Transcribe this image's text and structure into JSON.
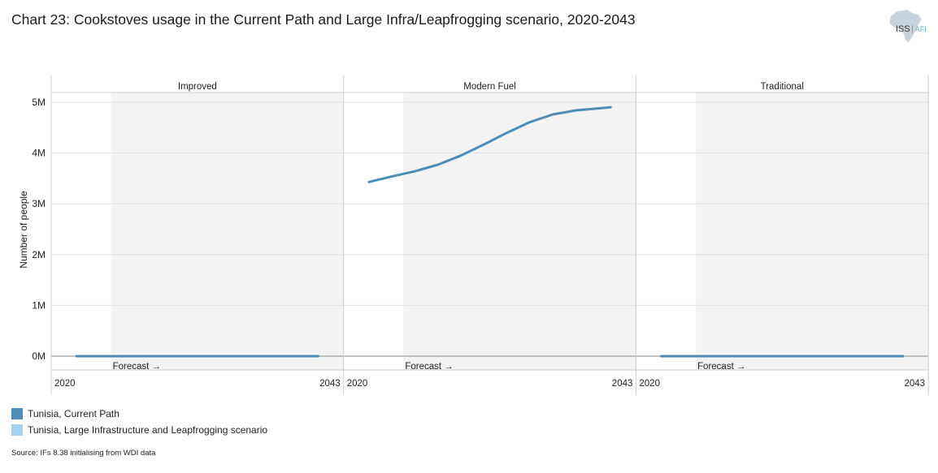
{
  "title": "Chart 23: Cookstoves usage in the Current Path and Large Infra/Leapfrogging scenario, 2020-2043",
  "logo": {
    "text": "ISS",
    "suffix": "AFI"
  },
  "source": "Source: IFs 8.38 initialising from WDI data",
  "colors": {
    "current_path": "#4e8db4",
    "leapfrog": "#a6d1ef",
    "shade": "#f3f3f3",
    "grid": "#e2e2e2"
  },
  "chart_data": {
    "type": "line",
    "ylabel": "Number of people",
    "ylim": [
      0,
      5000000
    ],
    "yticks": [
      0,
      1000000,
      2000000,
      3000000,
      4000000,
      5000000
    ],
    "ytick_labels": [
      "0M",
      "1M",
      "2M",
      "3M",
      "4M",
      "5M"
    ],
    "x_range": [
      2020,
      2043
    ],
    "xtick_labels": [
      "2020",
      "2043"
    ],
    "forecast_start": 2024,
    "forecast_label": "Forecast →",
    "legend": [
      {
        "name": "Tunisia, Current Path",
        "color": "#4e8db4"
      },
      {
        "name": "Tunisia, Large Infrastructure and Leapfrogging scenario",
        "color": "#a6d1ef"
      }
    ],
    "panels": [
      {
        "label": "Improved",
        "series": [
          {
            "name": "Tunisia, Current Path",
            "x": [
              2021,
              2025,
              2030,
              2035,
              2040,
              2042
            ],
            "y": [
              0,
              0,
              0,
              0,
              0,
              0
            ]
          }
        ]
      },
      {
        "label": "Modern Fuel",
        "series": [
          {
            "name": "Tunisia, Current Path",
            "x": [
              2021,
              2023,
              2025,
              2027,
              2029,
              2031,
              2033,
              2035,
              2037,
              2039,
              2041,
              2042
            ],
            "y": [
              3430000,
              3540000,
              3640000,
              3770000,
              3950000,
              4170000,
              4400000,
              4610000,
              4760000,
              4840000,
              4880000,
              4900000
            ]
          }
        ]
      },
      {
        "label": "Traditional",
        "series": [
          {
            "name": "Tunisia, Current Path",
            "x": [
              2021,
              2025,
              2030,
              2035,
              2040,
              2042
            ],
            "y": [
              0,
              0,
              0,
              0,
              0,
              0
            ]
          }
        ]
      }
    ]
  }
}
